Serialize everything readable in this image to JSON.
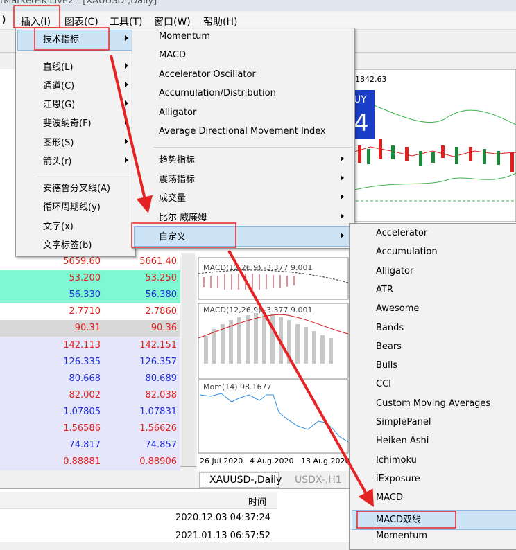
{
  "window_title": "tMarketHK-Live2 - [XAUUSD-,Daily]",
  "menubar": [
    ")",
    "插入(I)",
    "图表(C)",
    "工具(T)",
    "窗口(W)",
    "帮助(H)"
  ],
  "insert_menu": {
    "items": [
      "技术指标",
      "直线(L)",
      "通道(C)",
      "江恩(G)",
      "斐波纳奇(F)",
      "图形(S)",
      "箭头(r)",
      "安德鲁分叉线(A)",
      "循环周期线(y)",
      "文字(x)",
      "文字标签(b)"
    ]
  },
  "indicator_menu": {
    "items": [
      "Momentum",
      "MACD",
      "Accelerator Oscillator",
      "Accumulation/Distribution",
      "Alligator",
      "Average Directional Movement Index",
      "趋势指标",
      "震荡指标",
      "成交量",
      "比尔 威廉姆",
      "自定义"
    ]
  },
  "custom_menu": {
    "items": [
      "Accelerator",
      "Accumulation",
      "Alligator",
      "ATR",
      "Awesome",
      "Bands",
      "Bears",
      "Bulls",
      "CCI",
      "Custom Moving Averages",
      "SimplePanel",
      "Heiken Ashi",
      "Ichimoku",
      "iExposure",
      "MACD",
      "MACD双线",
      "Momentum"
    ]
  },
  "quotes": {
    "rows": [
      {
        "bid": "5659.60",
        "ask": "5661.40",
        "color": "#e0201c",
        "background": "#ffffff"
      },
      {
        "bid": "53.200",
        "ask": "53.250",
        "color": "#e0201c",
        "background": "#7ff7d2"
      },
      {
        "bid": "56.330",
        "ask": "56.380",
        "color": "#1f2fd8",
        "background": "#7ff7d2"
      },
      {
        "bid": "2.7710",
        "ask": "2.7860",
        "color": "#e0201c",
        "background": "#ffffff"
      },
      {
        "bid": "90.31",
        "ask": "90.36",
        "color": "#e0201c",
        "background": "#d8d8d8"
      },
      {
        "bid": "142.113",
        "ask": "142.151",
        "color": "#e0201c",
        "background": "#e6e6fa"
      },
      {
        "bid": "126.335",
        "ask": "126.357",
        "color": "#1f2fd8",
        "background": "#e6e6fa"
      },
      {
        "bid": "80.668",
        "ask": "80.689",
        "color": "#1f2fd8",
        "background": "#e6e6fa"
      },
      {
        "bid": "82.002",
        "ask": "82.038",
        "color": "#e0201c",
        "background": "#e6e6fa"
      },
      {
        "bid": "1.07805",
        "ask": "1.07831",
        "color": "#1f2fd8",
        "background": "#e6e6fa"
      },
      {
        "bid": "1.56586",
        "ask": "1.56626",
        "color": "#e0201c",
        "background": "#e6e6fa"
      },
      {
        "bid": "74.817",
        "ask": "74.857",
        "color": "#1f2fd8",
        "background": "#e6e6fa"
      },
      {
        "bid": "0.88881",
        "ask": "0.88906",
        "color": "#e0201c",
        "background": "#e6e6fa"
      }
    ]
  },
  "chart": {
    "price_label": "1842.63",
    "trade_panel": [
      "UY",
      "4"
    ],
    "macd_labels": [
      "MACD(12,26,9) -3.377 9.001",
      "MACD(12,26,9) -3.377 9.001"
    ],
    "mom_label": "Mom(14) 98.1677",
    "dates": [
      "26 Jul 2020",
      "4 Aug 2020",
      "13 Aug 2020"
    ],
    "tabs": [
      "XAUUSD-,Daily",
      "USDX-,H1"
    ]
  },
  "journal": {
    "header": "时间",
    "rows": [
      "2020.12.03 04:37:24",
      "2021.01.13 06:57:52"
    ]
  }
}
